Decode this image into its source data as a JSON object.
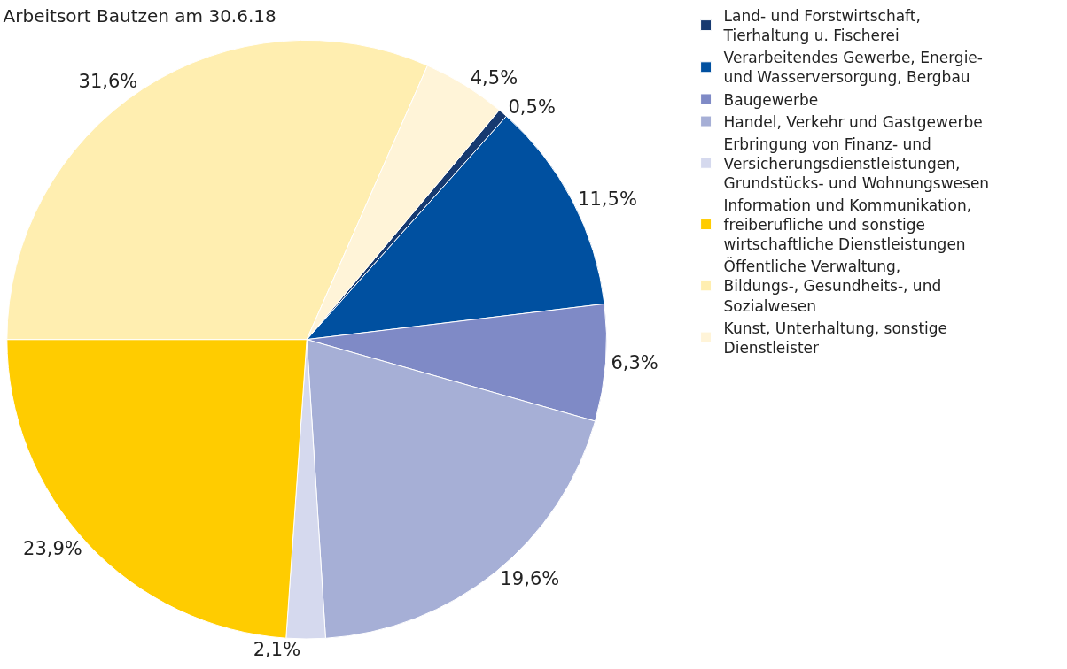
{
  "chart_data": {
    "type": "pie",
    "title": "Arbeitsort Bautzen am 30.6.18",
    "categories": [
      "Land- und Forstwirtschaft, Tierhaltung u. Fischerei",
      "Verarbeitendes Gewerbe, Energie- und Wasserversorgung, Bergbau",
      "Baugewerbe",
      "Handel, Verkehr und Gastgewerbe",
      "Erbringung von Finanz- und Versicherungsdienstleistungen, Grundstücks- und Wohnungswesen",
      "Information und Kommunikation, freiberufliche und sonstige wirtschaftliche Dienstleistungen",
      "Öffentliche Verwaltung, Bildungs-, Gesundheits-, und Sozialwesen",
      "Kunst, Unterhaltung, sonstige Dienstleister"
    ],
    "values": [
      0.5,
      11.5,
      6.3,
      19.6,
      2.1,
      23.9,
      31.6,
      4.5
    ],
    "value_labels": [
      "0,5%",
      "11,5%",
      "6,3%",
      "19,6%",
      "2,1%",
      "23,9%",
      "31,6%",
      "4,5%"
    ],
    "colors": [
      "#173a70",
      "#0050a0",
      "#7f8ac6",
      "#a6afd6",
      "#d5d9ee",
      "#ffcc00",
      "#ffeeb0",
      "#fff4d8"
    ],
    "legend": "right"
  }
}
